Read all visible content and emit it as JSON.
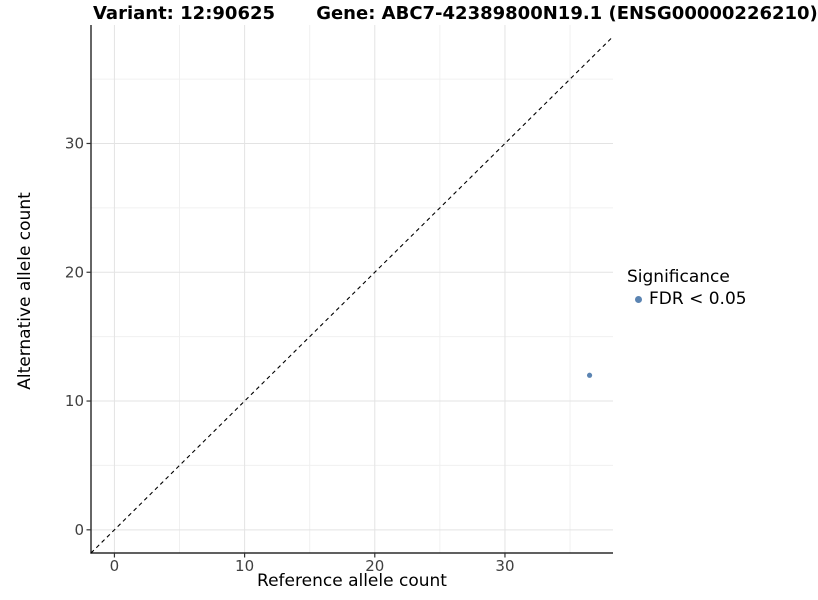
{
  "chart_data": {
    "type": "scatter",
    "title_left": "Variant: 12:90625",
    "title_right": "Gene: ABC7-42389800N19.1 (ENSG00000226210)",
    "xlabel": "Reference allele count",
    "ylabel": "Alternative allele count",
    "xlim": [
      -1.8,
      38.3
    ],
    "ylim": [
      -1.8,
      39.2
    ],
    "xticks": [
      0,
      10,
      20,
      30
    ],
    "yticks": [
      0,
      10,
      20,
      30
    ],
    "xticks_minor": [
      5,
      15,
      25,
      35
    ],
    "yticks_minor": [
      5,
      15,
      25,
      35
    ],
    "grid": true,
    "series": [
      {
        "name": "FDR < 0.05",
        "color": "#5B84B2",
        "points": [
          {
            "x": 36.5,
            "y": 12
          }
        ]
      }
    ],
    "reference_line": {
      "slope": 1,
      "intercept": 0,
      "style": "dashed",
      "color": "#000000"
    },
    "legend": {
      "title": "Significance",
      "position": "right",
      "items": [
        {
          "label": "FDR < 0.05",
          "color": "#5B84B2",
          "marker": "circle"
        }
      ]
    },
    "colors": {
      "grid_major": "#e3e3e3",
      "grid_minor": "#f0f0f0",
      "axis_line": "#000000",
      "tick_label": "#404040"
    }
  }
}
